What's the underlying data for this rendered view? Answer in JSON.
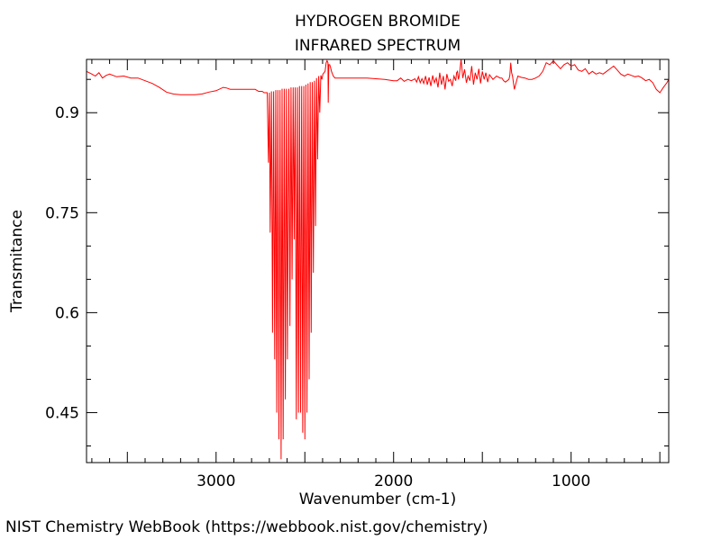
{
  "chart_data": {
    "type": "line",
    "title": "HYDROGEN BROMIDE",
    "subtitle": "INFRARED SPECTRUM",
    "xlabel": "Wavenumber (cm-1)",
    "ylabel": "Transmitance",
    "xlim": [
      3730,
      450
    ],
    "ylim": [
      0.375,
      0.98
    ],
    "x_ticks": [
      3000,
      2000,
      1000
    ],
    "x_tick_labels": [
      "3000",
      "2000",
      "1000"
    ],
    "y_ticks": [
      0.45,
      0.6,
      0.75,
      0.9
    ],
    "y_tick_labels": [
      "0.45",
      "0.6",
      "0.75",
      "0.9"
    ],
    "grid": false,
    "legend": "none",
    "line_color": "#ff0000",
    "series": [
      {
        "x": [
          3730,
          3700,
          3680,
          3660,
          3640,
          3620,
          3600,
          3560,
          3520,
          3480,
          3440,
          3400,
          3360,
          3320,
          3280,
          3240,
          3200,
          3160,
          3120,
          3080,
          3040,
          3000,
          2960,
          2940,
          2920,
          2900,
          2880,
          2860,
          2840,
          2820,
          2800,
          2780,
          2760,
          2740,
          2730,
          2720,
          2712,
          2705,
          2700,
          2695,
          2688,
          2682,
          2676,
          2670,
          2664,
          2658,
          2652,
          2646,
          2640,
          2634,
          2628,
          2622,
          2616,
          2610,
          2604,
          2598,
          2590,
          2584,
          2578,
          2572,
          2566,
          2560,
          2554,
          2548,
          2542,
          2536,
          2530,
          2524,
          2518,
          2512,
          2506,
          2500,
          2494,
          2488,
          2482,
          2476,
          2470,
          2464,
          2458,
          2452,
          2446,
          2440,
          2434,
          2428,
          2422,
          2416,
          2410,
          2404,
          2398,
          2392,
          2386,
          2380,
          2375,
          2370,
          2368,
          2365,
          2360,
          2355,
          2350,
          2340,
          2330,
          2320,
          2300,
          2250,
          2200,
          2150,
          2100,
          2050,
          2000,
          1980,
          1960,
          1940,
          1920,
          1900,
          1880,
          1870,
          1860,
          1850,
          1840,
          1830,
          1820,
          1810,
          1800,
          1790,
          1780,
          1770,
          1760,
          1750,
          1740,
          1730,
          1720,
          1710,
          1700,
          1690,
          1680,
          1670,
          1660,
          1650,
          1645,
          1640,
          1635,
          1630,
          1620,
          1610,
          1600,
          1590,
          1580,
          1570,
          1560,
          1550,
          1540,
          1530,
          1520,
          1510,
          1500,
          1490,
          1480,
          1470,
          1460,
          1440,
          1420,
          1400,
          1390,
          1380,
          1370,
          1360,
          1350,
          1345,
          1340,
          1335,
          1330,
          1320,
          1300,
          1280,
          1260,
          1240,
          1220,
          1200,
          1180,
          1160,
          1140,
          1120,
          1100,
          1080,
          1060,
          1040,
          1020,
          1000,
          980,
          960,
          940,
          920,
          900,
          880,
          860,
          840,
          820,
          800,
          780,
          760,
          740,
          720,
          700,
          680,
          660,
          640,
          620,
          600,
          580,
          560,
          540,
          520,
          500,
          480,
          460,
          450
        ],
        "y": [
          0.962,
          0.958,
          0.955,
          0.96,
          0.952,
          0.956,
          0.958,
          0.954,
          0.955,
          0.952,
          0.952,
          0.948,
          0.944,
          0.938,
          0.931,
          0.928,
          0.927,
          0.927,
          0.927,
          0.928,
          0.931,
          0.933,
          0.938,
          0.937,
          0.935,
          0.935,
          0.935,
          0.935,
          0.935,
          0.935,
          0.935,
          0.935,
          0.932,
          0.932,
          0.93,
          0.93,
          0.93,
          0.825,
          0.93,
          0.72,
          0.932,
          0.57,
          0.932,
          0.53,
          0.934,
          0.45,
          0.934,
          0.41,
          0.934,
          0.38,
          0.936,
          0.41,
          0.936,
          0.47,
          0.936,
          0.53,
          0.936,
          0.58,
          0.938,
          0.65,
          0.938,
          0.71,
          0.938,
          0.44,
          0.938,
          0.45,
          0.94,
          0.45,
          0.94,
          0.42,
          0.94,
          0.41,
          0.942,
          0.45,
          0.944,
          0.5,
          0.946,
          0.57,
          0.946,
          0.66,
          0.948,
          0.73,
          0.952,
          0.83,
          0.955,
          0.9,
          0.956,
          0.95,
          0.958,
          0.96,
          0.962,
          0.975,
          0.978,
          0.975,
          0.915,
          0.972,
          0.972,
          0.968,
          0.962,
          0.955,
          0.952,
          0.952,
          0.952,
          0.952,
          0.952,
          0.952,
          0.951,
          0.95,
          0.948,
          0.948,
          0.952,
          0.947,
          0.95,
          0.948,
          0.951,
          0.946,
          0.954,
          0.945,
          0.951,
          0.944,
          0.955,
          0.942,
          0.953,
          0.94,
          0.956,
          0.945,
          0.952,
          0.938,
          0.96,
          0.942,
          0.955,
          0.935,
          0.958,
          0.947,
          0.95,
          0.94,
          0.955,
          0.948,
          0.96,
          0.962,
          0.95,
          0.955,
          0.99,
          0.952,
          0.965,
          0.945,
          0.955,
          0.948,
          0.97,
          0.942,
          0.96,
          0.95,
          0.966,
          0.944,
          0.962,
          0.95,
          0.96,
          0.946,
          0.957,
          0.95,
          0.955,
          0.952,
          0.952,
          0.948,
          0.946,
          0.948,
          0.95,
          0.956,
          0.975,
          0.96,
          0.955,
          0.935,
          0.955,
          0.953,
          0.952,
          0.95,
          0.95,
          0.952,
          0.955,
          0.962,
          0.975,
          0.972,
          0.978,
          0.972,
          0.966,
          0.972,
          0.975,
          0.97,
          0.972,
          0.964,
          0.962,
          0.966,
          0.958,
          0.962,
          0.958,
          0.96,
          0.958,
          0.962,
          0.966,
          0.97,
          0.964,
          0.958,
          0.955,
          0.958,
          0.956,
          0.954,
          0.955,
          0.952,
          0.948,
          0.95,
          0.945,
          0.935,
          0.93,
          0.938,
          0.945,
          0.95
        ]
      }
    ]
  },
  "footer": {
    "credit": "NIST Chemistry WebBook (https://webbook.nist.gov/chemistry)"
  }
}
